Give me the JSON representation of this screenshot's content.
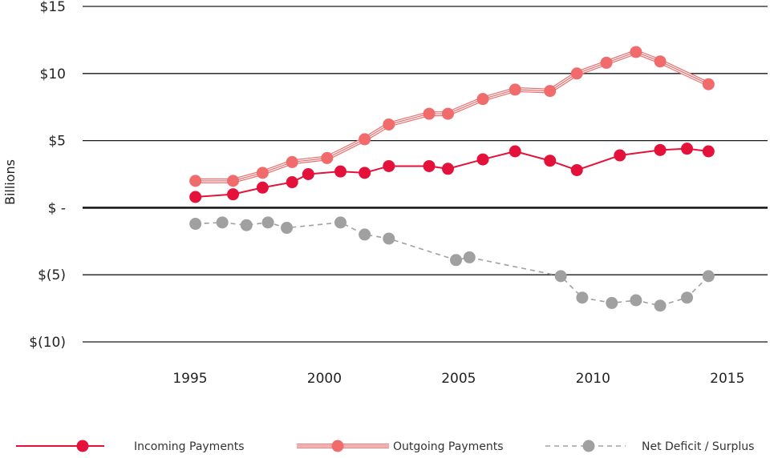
{
  "chart_data": {
    "type": "line",
    "title": "",
    "xlabel": "",
    "ylabel": "Billions",
    "xlim": [
      1991,
      2016.5
    ],
    "ylim": [
      -10,
      15
    ],
    "x_ticks": [
      1995,
      2000,
      2005,
      2010,
      2015
    ],
    "y_ticks": [
      {
        "value": 15,
        "label": "$15"
      },
      {
        "value": 10,
        "label": "$10"
      },
      {
        "value": 5,
        "label": "$5"
      },
      {
        "value": 0,
        "label": "$ -"
      },
      {
        "value": -5,
        "label": "$(5)"
      },
      {
        "value": -10,
        "label": "$(10)"
      }
    ],
    "grid": true,
    "legend_position": "bottom",
    "series": [
      {
        "name": "Incoming Payments",
        "color": "#e4123a",
        "style": "solid",
        "points": [
          [
            1995.2,
            0.8
          ],
          [
            1996.6,
            1.0
          ],
          [
            1997.7,
            1.5
          ],
          [
            1998.8,
            1.9
          ],
          [
            1999.4,
            2.5
          ],
          [
            2000.6,
            2.7
          ],
          [
            2001.5,
            2.6
          ],
          [
            2002.4,
            3.1
          ],
          [
            2003.9,
            3.1
          ],
          [
            2004.6,
            2.9
          ],
          [
            2005.9,
            3.6
          ],
          [
            2007.1,
            4.2
          ],
          [
            2008.4,
            3.5
          ],
          [
            2009.4,
            2.8
          ],
          [
            2011.0,
            3.9
          ],
          [
            2012.5,
            4.3
          ],
          [
            2013.5,
            4.4
          ],
          [
            2014.3,
            4.2
          ]
        ]
      },
      {
        "name": "Outgoing Payments",
        "color": "#f06b6b",
        "style": "triple",
        "points": [
          [
            1995.2,
            2.0
          ],
          [
            1996.6,
            2.0
          ],
          [
            1997.7,
            2.6
          ],
          [
            1998.8,
            3.4
          ],
          [
            2000.1,
            3.7
          ],
          [
            2001.5,
            5.1
          ],
          [
            2002.4,
            6.2
          ],
          [
            2003.9,
            7.0
          ],
          [
            2004.6,
            7.0
          ],
          [
            2005.9,
            8.1
          ],
          [
            2007.1,
            8.8
          ],
          [
            2008.4,
            8.7
          ],
          [
            2009.4,
            10.0
          ],
          [
            2010.5,
            10.8
          ],
          [
            2011.6,
            11.6
          ],
          [
            2012.5,
            10.9
          ],
          [
            2014.3,
            9.2
          ]
        ]
      },
      {
        "name": "Net Deficit / Surplus",
        "color": "#a0a0a0",
        "style": "dashed",
        "points": [
          [
            1995.2,
            -1.2
          ],
          [
            1996.2,
            -1.1
          ],
          [
            1997.1,
            -1.3
          ],
          [
            1997.9,
            -1.1
          ],
          [
            1998.6,
            -1.5
          ],
          [
            2000.6,
            -1.1
          ],
          [
            2001.5,
            -2.0
          ],
          [
            2002.4,
            -2.3
          ],
          [
            2004.9,
            -3.9
          ],
          [
            2005.4,
            -3.7
          ],
          [
            2008.8,
            -5.1
          ],
          [
            2009.6,
            -6.7
          ],
          [
            2010.7,
            -7.1
          ],
          [
            2011.6,
            -6.9
          ],
          [
            2012.5,
            -7.3
          ],
          [
            2013.5,
            -6.7
          ],
          [
            2014.3,
            -5.1
          ]
        ]
      }
    ]
  }
}
